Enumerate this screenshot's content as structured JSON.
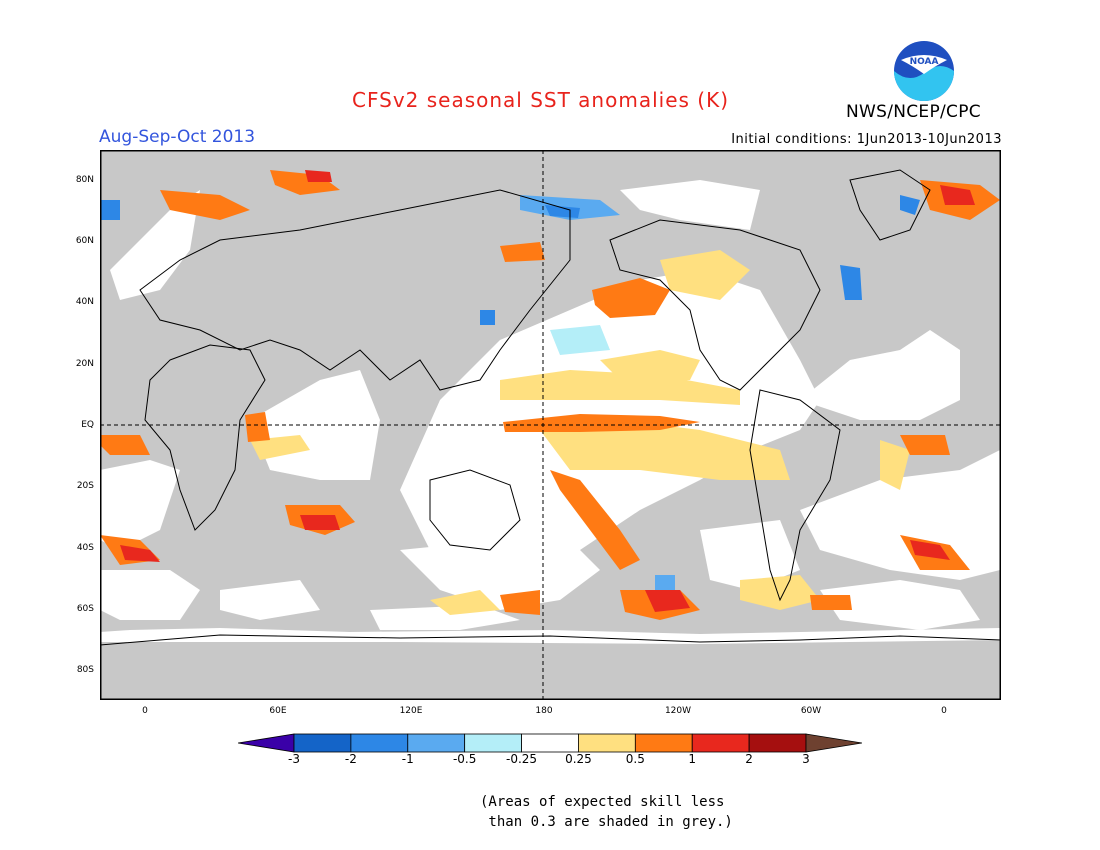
{
  "title": "CFSv2 seasonal SST anomalies (K)",
  "season": "Aug-Sep-Oct 2013",
  "initial_conditions": "Initial conditions: 1Jun2013-10Jun2013",
  "agency": "NWS/NCEP/CPC",
  "logo_text": "NOAA",
  "colors": {
    "title": "#e8231c",
    "season": "#3355dd",
    "land": "#c8c8c8",
    "ocean": "#ffffff"
  },
  "map": {
    "lat_labels": [
      "80N",
      "60N",
      "40N",
      "20N",
      "EQ",
      "20S",
      "40S",
      "60S",
      "80S"
    ],
    "lat_values": [
      80,
      60,
      40,
      20,
      0,
      -20,
      -40,
      -60,
      -80
    ],
    "lon_labels": [
      "0",
      "60E",
      "120E",
      "180",
      "120W",
      "60W",
      "0"
    ],
    "lon_values": [
      0,
      60,
      120,
      180,
      240,
      300,
      360
    ]
  },
  "legend": {
    "labels": [
      "-3",
      "-2",
      "-1",
      "-0.5",
      "-0.25",
      "0.25",
      "0.5",
      "1",
      "2",
      "3"
    ],
    "colors": [
      "#3a00a8",
      "#1464c8",
      "#2d87e6",
      "#5aaaf0",
      "#b4eef8",
      "#ffffff",
      "#ffe080",
      "#ff7a14",
      "#e8281e",
      "#a50f0f",
      "#6e4130"
    ]
  },
  "note": "(Areas of expected skill less\n than 0.3 are shaded in grey.)"
}
